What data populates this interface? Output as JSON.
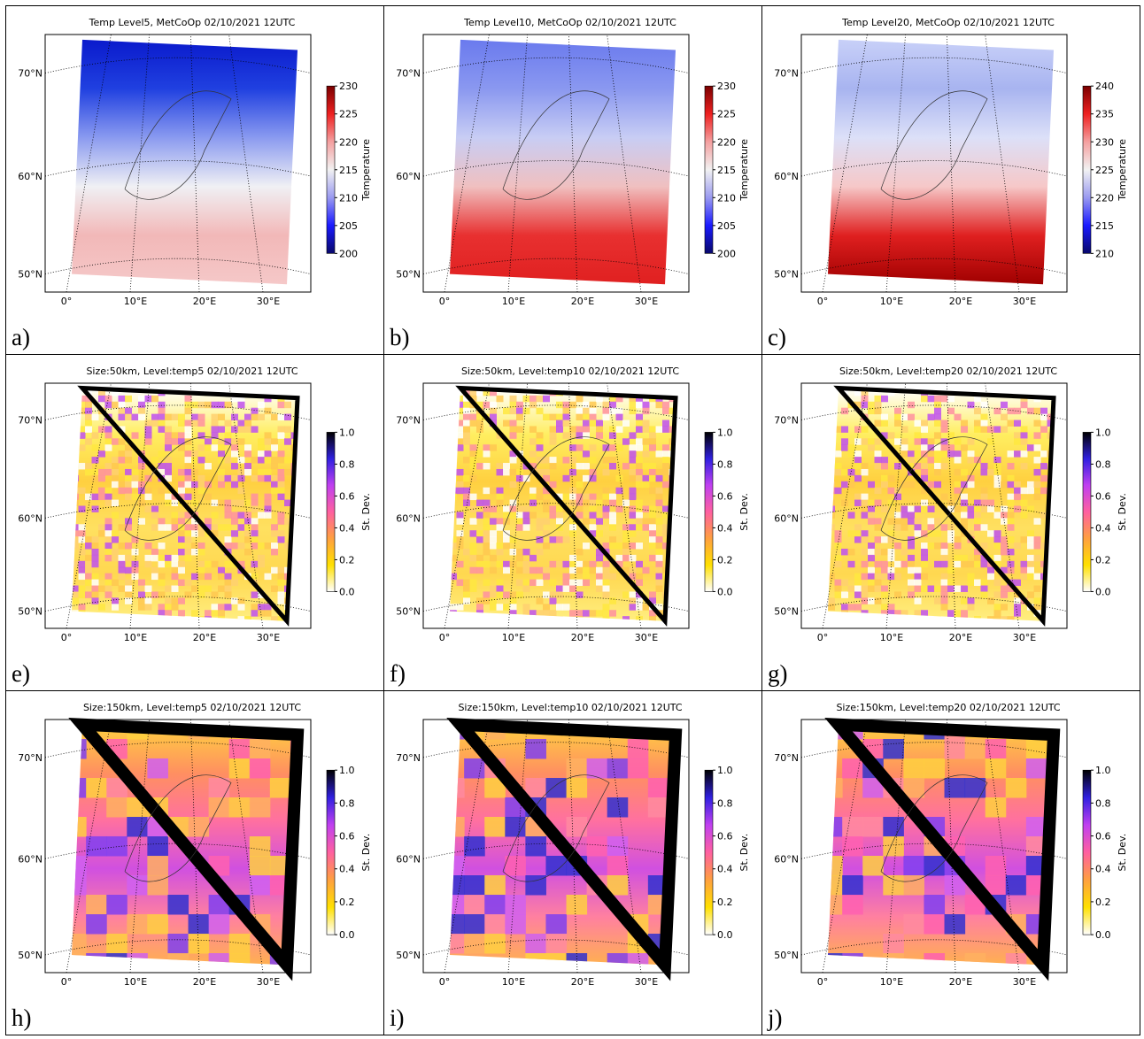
{
  "lat_labels": [
    "70°N",
    "60°N",
    "50°N"
  ],
  "lon_labels": [
    "0°",
    "10°E",
    "20°E",
    "30°E"
  ],
  "panels": [
    {
      "title": "Temp Level5, MetCoOp 02/10/2021 12UTC",
      "label": "a)",
      "colorbar": {
        "label": "Temperature",
        "ticks": [
          "200",
          "205",
          "210",
          "215",
          "220",
          "225",
          "230"
        ]
      }
    },
    {
      "title": "Temp Level10, MetCoOp 02/10/2021 12UTC",
      "label": "b)",
      "colorbar": {
        "label": "Temperature",
        "ticks": [
          "200",
          "205",
          "210",
          "215",
          "220",
          "225",
          "230"
        ]
      }
    },
    {
      "title": "Temp Level20, MetCoOp 02/10/2021 12UTC",
      "label": "c)",
      "colorbar": {
        "label": "Temperature",
        "ticks": [
          "210",
          "215",
          "220",
          "225",
          "230",
          "235",
          "240"
        ]
      }
    },
    {
      "title": "Size:50km, Level:temp5 02/10/2021 12UTC",
      "label": "e)",
      "colorbar": {
        "label": "St. Dev.",
        "ticks": [
          "0.0",
          "0.2",
          "0.4",
          "0.6",
          "0.8",
          "1.0"
        ]
      }
    },
    {
      "title": "Size:50km, Level:temp10 02/10/2021 12UTC",
      "label": "f)",
      "colorbar": {
        "label": "St. Dev.",
        "ticks": [
          "0.0",
          "0.2",
          "0.4",
          "0.6",
          "0.8",
          "1.0"
        ]
      }
    },
    {
      "title": "Size:50km, Level:temp20 02/10/2021 12UTC",
      "label": "g)",
      "colorbar": {
        "label": "St. Dev.",
        "ticks": [
          "0.0",
          "0.2",
          "0.4",
          "0.6",
          "0.8",
          "1.0"
        ]
      }
    },
    {
      "title": "Size:150km, Level:temp5 02/10/2021 12UTC",
      "label": "h)",
      "colorbar": {
        "label": "St. Dev.",
        "ticks": [
          "0.0",
          "0.2",
          "0.4",
          "0.6",
          "0.8",
          "1.0"
        ]
      }
    },
    {
      "title": "Size:150km, Level:temp10 02/10/2021 12UTC",
      "label": "i)",
      "colorbar": {
        "label": "St. Dev.",
        "ticks": [
          "0.0",
          "0.2",
          "0.4",
          "0.6",
          "0.8",
          "1.0"
        ]
      }
    },
    {
      "title": "Size:150km, Level:temp20 02/10/2021 12UTC",
      "label": "j)",
      "colorbar": {
        "label": "St. Dev.",
        "ticks": [
          "0.0",
          "0.2",
          "0.4",
          "0.6",
          "0.8",
          "1.0"
        ]
      }
    }
  ]
}
